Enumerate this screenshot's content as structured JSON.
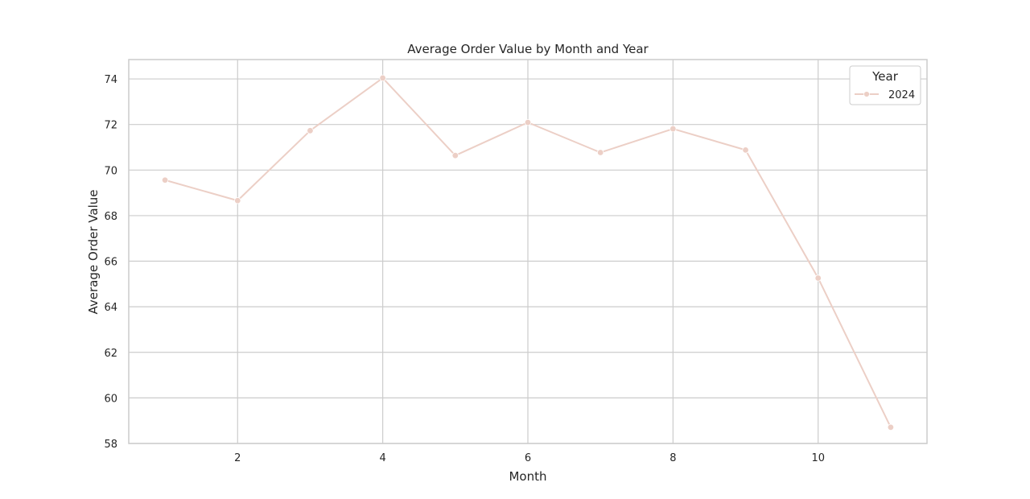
{
  "chart_data": {
    "type": "line",
    "title": "Average Order Value by Month and Year",
    "xlabel": "Month",
    "ylabel": "Average Order Value",
    "x": [
      1,
      2,
      3,
      4,
      5,
      6,
      7,
      8,
      9,
      10,
      11
    ],
    "series": [
      {
        "name": "2024",
        "color": "#eccfc6",
        "values": [
          69.56,
          68.66,
          71.73,
          74.04,
          70.64,
          72.09,
          70.77,
          71.81,
          70.88,
          65.26,
          58.71
        ]
      }
    ],
    "xlim": [
      0.5,
      11.5
    ],
    "ylim": [
      58,
      74.85
    ],
    "xticks": [
      2,
      4,
      6,
      8,
      10
    ],
    "yticks": [
      58,
      60,
      62,
      64,
      66,
      68,
      70,
      72,
      74
    ],
    "grid": true,
    "legend": {
      "title": "Year",
      "placement": "top-right"
    }
  }
}
